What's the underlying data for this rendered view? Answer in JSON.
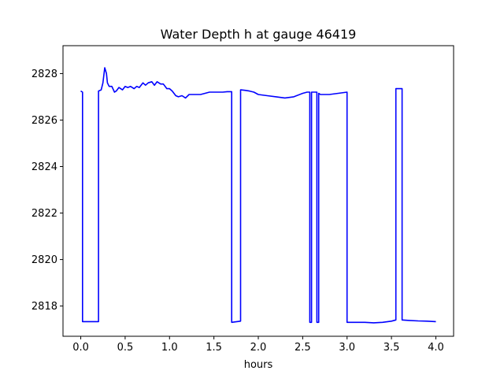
{
  "chart_data": {
    "type": "line",
    "title": "Water Depth h at gauge 46419",
    "xlabel": "hours",
    "ylabel": "",
    "xlim": [
      -0.2,
      4.2
    ],
    "ylim": [
      2816.7,
      2829.2
    ],
    "xticks": [
      0.0,
      0.5,
      1.0,
      1.5,
      2.0,
      2.5,
      3.0,
      3.5,
      4.0
    ],
    "xtick_labels": [
      "0.0",
      "0.5",
      "1.0",
      "1.5",
      "2.0",
      "2.5",
      "3.0",
      "3.5",
      "4.0"
    ],
    "yticks": [
      2818,
      2820,
      2822,
      2824,
      2826,
      2828
    ],
    "ytick_labels": [
      "2818",
      "2820",
      "2822",
      "2824",
      "2826",
      "2828"
    ],
    "grid": false,
    "series": [
      {
        "color": "#0000ff",
        "x": [
          0.0,
          0.02,
          0.02,
          0.2,
          0.2,
          0.23,
          0.25,
          0.27,
          0.29,
          0.3,
          0.32,
          0.35,
          0.38,
          0.4,
          0.43,
          0.47,
          0.5,
          0.53,
          0.56,
          0.6,
          0.63,
          0.66,
          0.7,
          0.73,
          0.76,
          0.8,
          0.83,
          0.86,
          0.9,
          0.93,
          0.97,
          1.0,
          1.03,
          1.07,
          1.1,
          1.14,
          1.18,
          1.22,
          1.26,
          1.3,
          1.35,
          1.4,
          1.45,
          1.5,
          1.55,
          1.6,
          1.65,
          1.7,
          1.7,
          1.8,
          1.8,
          1.85,
          1.9,
          1.95,
          2.0,
          2.1,
          2.2,
          2.3,
          2.4,
          2.5,
          2.55,
          2.58,
          2.58,
          2.6,
          2.6,
          2.66,
          2.66,
          2.68,
          2.68,
          2.7,
          2.8,
          2.9,
          3.0,
          3.0,
          3.1,
          3.2,
          3.3,
          3.4,
          3.5,
          3.55,
          3.55,
          3.62,
          3.62,
          3.7,
          3.8,
          3.9,
          4.0
        ],
        "y": [
          2827.25,
          2827.2,
          2817.33,
          2817.33,
          2827.25,
          2827.3,
          2827.6,
          2828.25,
          2828.0,
          2827.6,
          2827.45,
          2827.45,
          2827.2,
          2827.25,
          2827.4,
          2827.3,
          2827.45,
          2827.4,
          2827.45,
          2827.35,
          2827.45,
          2827.4,
          2827.6,
          2827.5,
          2827.6,
          2827.65,
          2827.5,
          2827.65,
          2827.55,
          2827.55,
          2827.35,
          2827.35,
          2827.25,
          2827.05,
          2827.0,
          2827.05,
          2826.95,
          2827.1,
          2827.1,
          2827.1,
          2827.1,
          2827.15,
          2827.2,
          2827.2,
          2827.2,
          2827.2,
          2827.22,
          2827.22,
          2817.3,
          2817.35,
          2827.3,
          2827.28,
          2827.25,
          2827.2,
          2827.1,
          2827.05,
          2827.0,
          2826.95,
          2827.0,
          2827.15,
          2827.2,
          2827.2,
          2817.3,
          2817.3,
          2827.2,
          2827.2,
          2817.3,
          2817.3,
          2827.15,
          2827.1,
          2827.1,
          2827.15,
          2827.2,
          2817.3,
          2817.3,
          2817.3,
          2817.28,
          2817.3,
          2817.35,
          2817.4,
          2827.35,
          2827.35,
          2817.4,
          2817.38,
          2817.36,
          2817.35,
          2817.33
        ]
      }
    ]
  }
}
